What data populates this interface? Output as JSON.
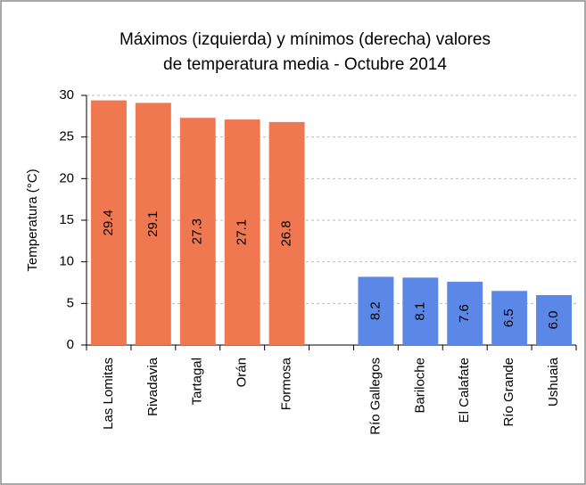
{
  "chart_data": {
    "type": "bar",
    "title": [
      "Máximos  (izquierda) y mínimos (derecha) valores",
      "de temperatura media - Octubre 2014"
    ],
    "y_label": "Temperatura  (°C)",
    "categories": [
      "Las Lomitas",
      "Rivadavia",
      "Tartagal",
      "Orán",
      "Formosa",
      null,
      "Río Gallegos",
      "Bariloche",
      "El Calafate",
      "Río Grande",
      "Ushuaia"
    ],
    "values": [
      29.4,
      29.1,
      27.3,
      27.1,
      26.8,
      null,
      8.2,
      8.1,
      7.6,
      6.5,
      6.0
    ],
    "value_labels": [
      "29.4",
      "29.1",
      "27.3",
      "27.1",
      "26.8",
      null,
      "8.2",
      "8.1",
      "7.6",
      "6.5",
      "6.0"
    ],
    "colors": [
      "#f07850",
      "#f07850",
      "#f07850",
      "#f07850",
      "#f07850",
      null,
      "#5b87e6",
      "#5b87e6",
      "#5b87e6",
      "#5b87e6",
      "#5b87e6"
    ],
    "ylim": [
      0,
      30
    ],
    "yticks": [
      0,
      5,
      10,
      15,
      20,
      25,
      30
    ],
    "grid": true
  }
}
